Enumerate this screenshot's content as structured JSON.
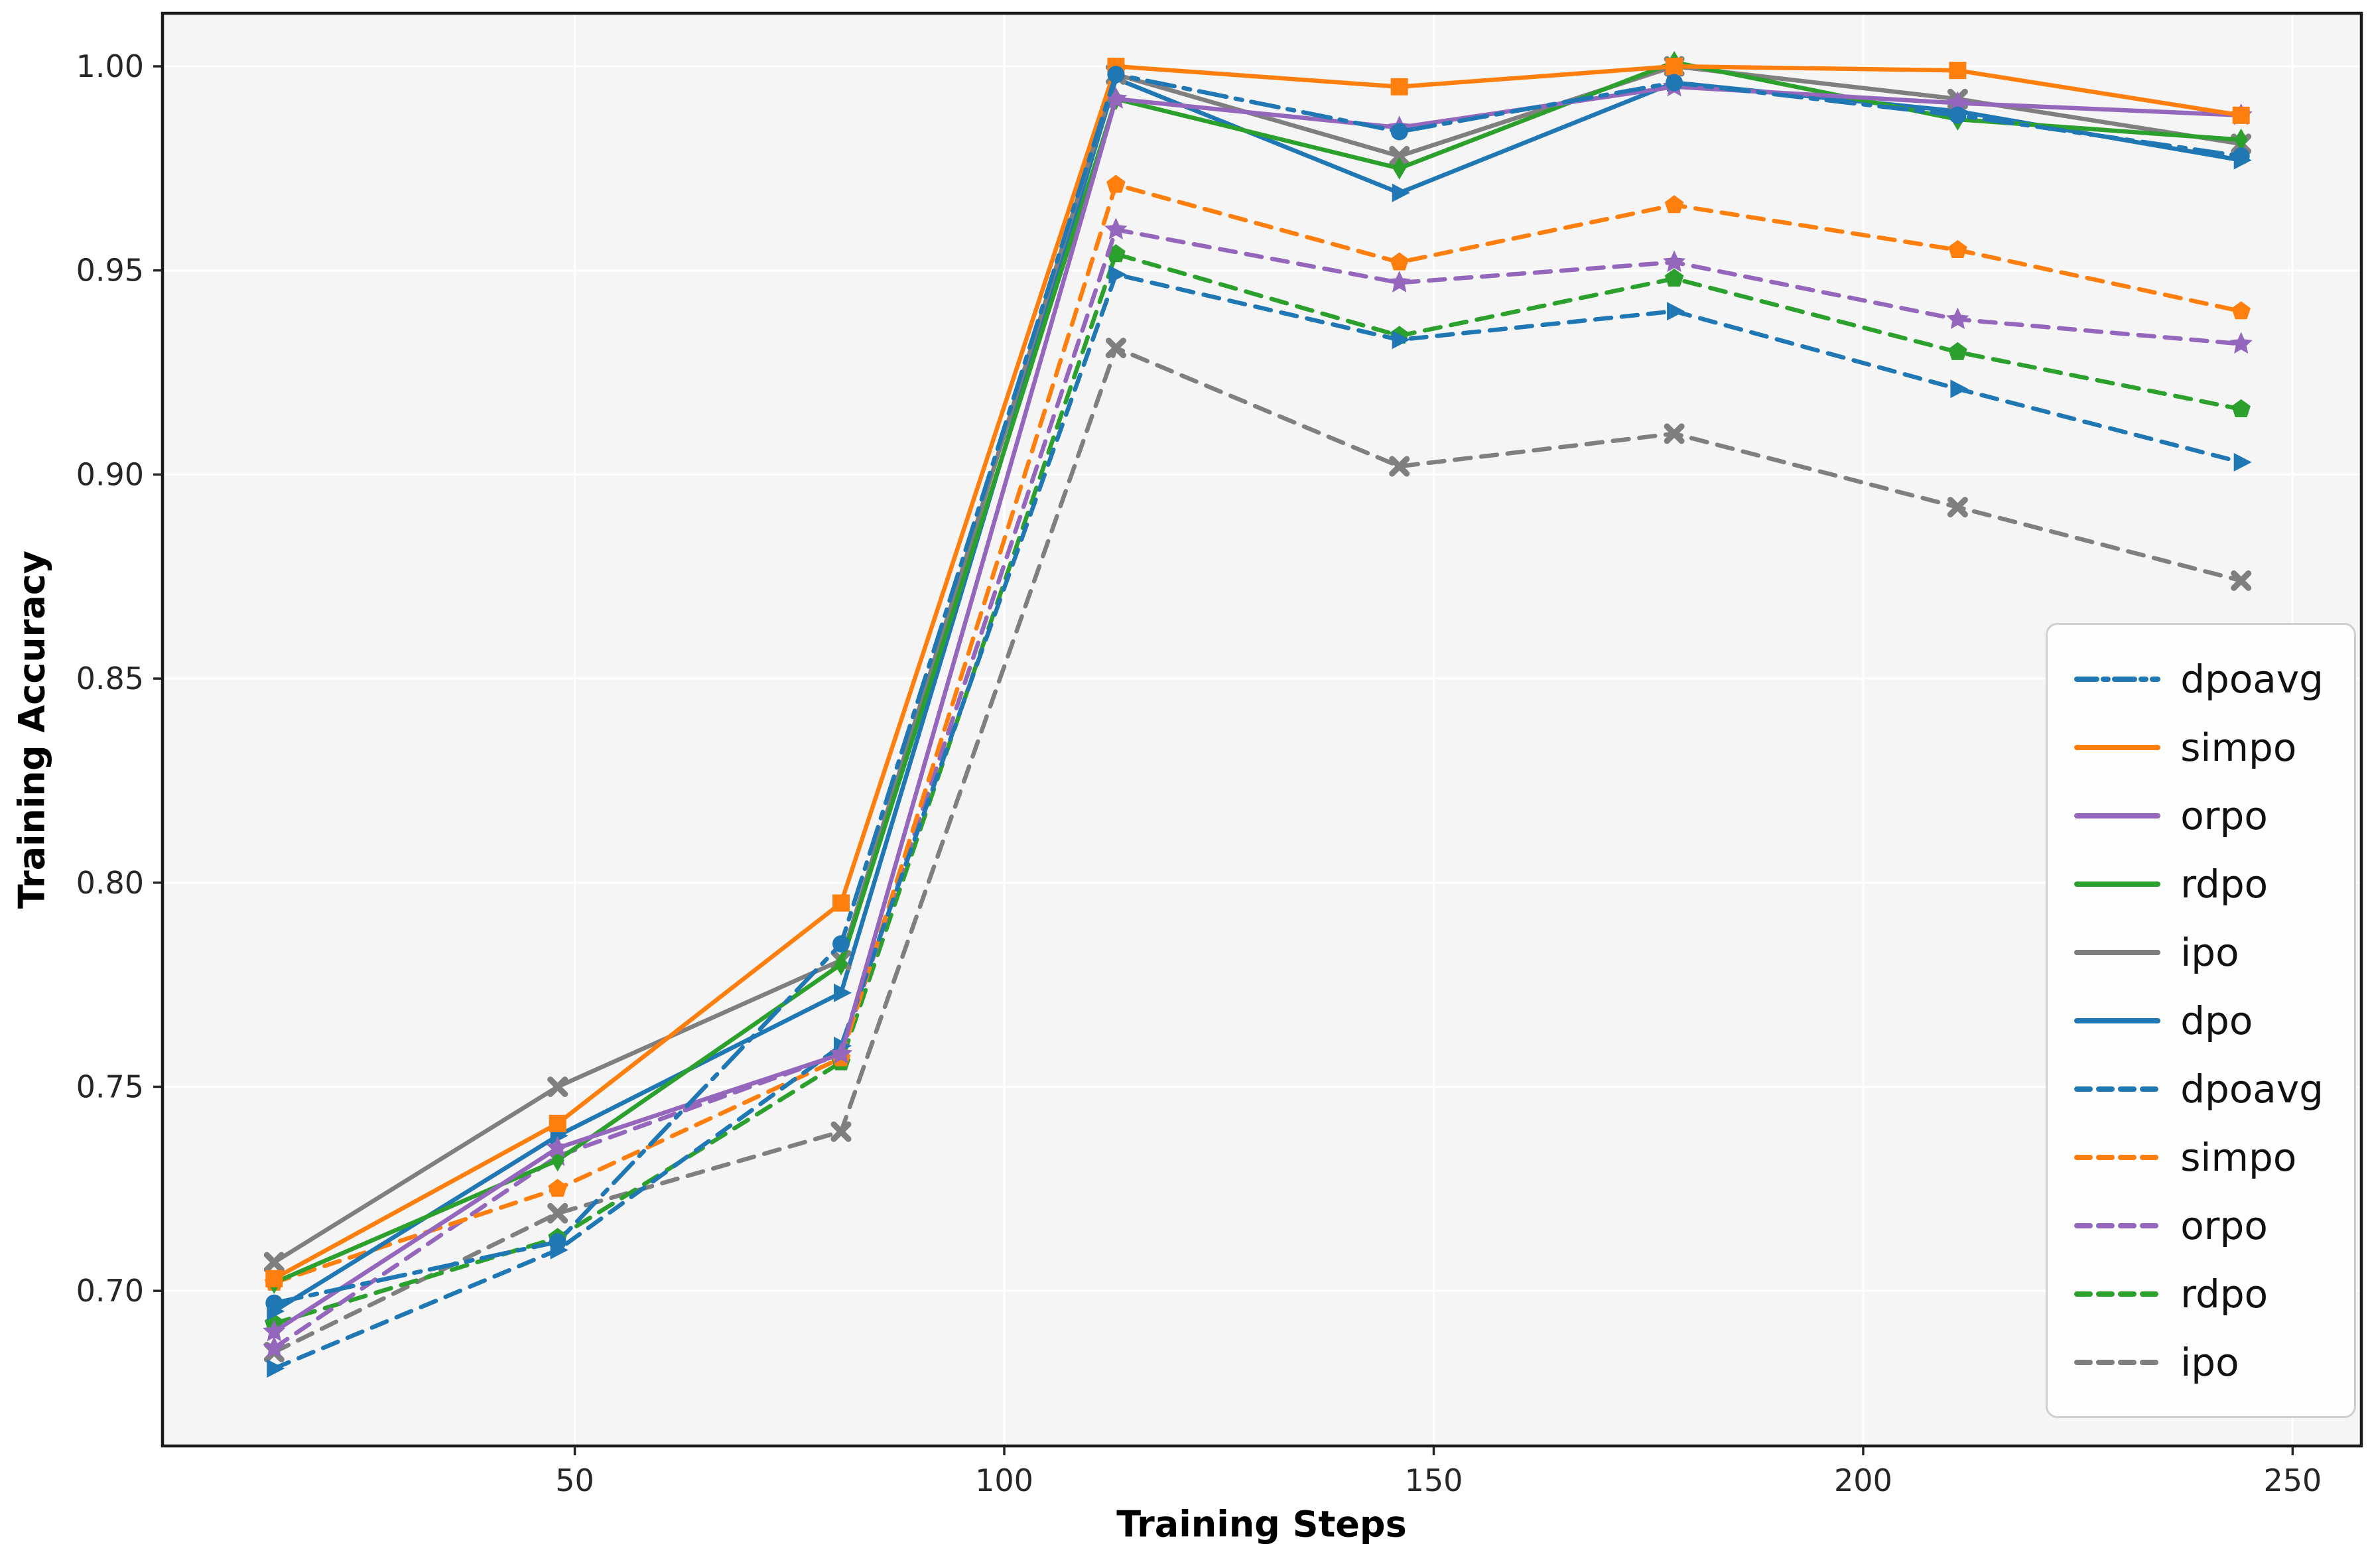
{
  "figure": {
    "background": "#ffffff",
    "plot_background": "#f5f5f5",
    "grid_color": "#ffffff",
    "spine_color": "#1a1a1a",
    "tick_color": "#262626"
  },
  "chart_data": {
    "type": "line",
    "title": "",
    "xlabel": "Training Steps",
    "ylabel": "Training Accuracy",
    "x": [
      15,
      48,
      81,
      113,
      146,
      178,
      211,
      244
    ],
    "xlim": [
      2,
      258
    ],
    "ylim": [
      0.662,
      1.013
    ],
    "xticks": [
      50,
      100,
      150,
      200,
      250
    ],
    "yticks": [
      0.7,
      0.75,
      0.8,
      0.85,
      0.9,
      0.95,
      1.0
    ],
    "grid": true,
    "legend_position": "lower right",
    "series": [
      {
        "name": "dpoavg-solid",
        "label": "dpoavg",
        "color": "#1f77b4",
        "style": "dashdot",
        "marker": "circle",
        "values": [
          0.697,
          0.712,
          0.785,
          0.998,
          0.984,
          0.996,
          0.988,
          0.978
        ]
      },
      {
        "name": "simpo-solid",
        "label": "simpo",
        "color": "#ff7f0e",
        "style": "solid",
        "marker": "square",
        "values": [
          0.703,
          0.741,
          0.795,
          1.0,
          0.995,
          1.0,
          0.999,
          0.988
        ]
      },
      {
        "name": "orpo-solid",
        "label": "orpo",
        "color": "#9467bd",
        "style": "solid",
        "marker": "star",
        "values": [
          0.69,
          0.735,
          0.758,
          0.992,
          0.985,
          0.995,
          0.991,
          0.988
        ]
      },
      {
        "name": "rdpo-solid",
        "label": "rdpo",
        "color": "#2ca02c",
        "style": "solid",
        "marker": "thin_diamond",
        "values": [
          0.702,
          0.732,
          0.78,
          0.992,
          0.975,
          1.001,
          0.987,
          0.982
        ]
      },
      {
        "name": "ipo-solid",
        "label": "ipo",
        "color": "#7f7f7f",
        "style": "solid",
        "marker": "x",
        "values": [
          0.707,
          0.75,
          0.781,
          0.998,
          0.978,
          1.0,
          0.992,
          0.981
        ]
      },
      {
        "name": "dpo-solid",
        "label": "dpo",
        "color": "#1f77b4",
        "style": "solid",
        "marker": "triangle_right",
        "values": [
          0.695,
          0.738,
          0.773,
          0.997,
          0.969,
          0.996,
          0.989,
          0.977
        ]
      },
      {
        "name": "dpoavg-dashed",
        "label": "dpoavg",
        "color": "#1f77b4",
        "style": "dashed",
        "marker": "triangle_right",
        "values": [
          0.681,
          0.71,
          0.76,
          0.949,
          0.933,
          0.94,
          0.921,
          0.903
        ]
      },
      {
        "name": "simpo-dashed",
        "label": "simpo",
        "color": "#ff7f0e",
        "style": "dashed",
        "marker": "pentagon",
        "values": [
          0.702,
          0.725,
          0.757,
          0.971,
          0.952,
          0.966,
          0.955,
          0.94
        ]
      },
      {
        "name": "orpo-dashed",
        "label": "orpo",
        "color": "#9467bd",
        "style": "dashed",
        "marker": "star",
        "values": [
          0.686,
          0.733,
          0.758,
          0.96,
          0.947,
          0.952,
          0.938,
          0.932
        ]
      },
      {
        "name": "rdpo-dashed",
        "label": "rdpo",
        "color": "#2ca02c",
        "style": "dashed",
        "marker": "pentagon",
        "values": [
          0.692,
          0.713,
          0.756,
          0.954,
          0.934,
          0.948,
          0.93,
          0.916
        ]
      },
      {
        "name": "ipo-dashed",
        "label": "ipo",
        "color": "#7f7f7f",
        "style": "dashed",
        "marker": "x",
        "values": [
          0.685,
          0.719,
          0.739,
          0.931,
          0.902,
          0.91,
          0.892,
          0.874
        ]
      }
    ]
  }
}
